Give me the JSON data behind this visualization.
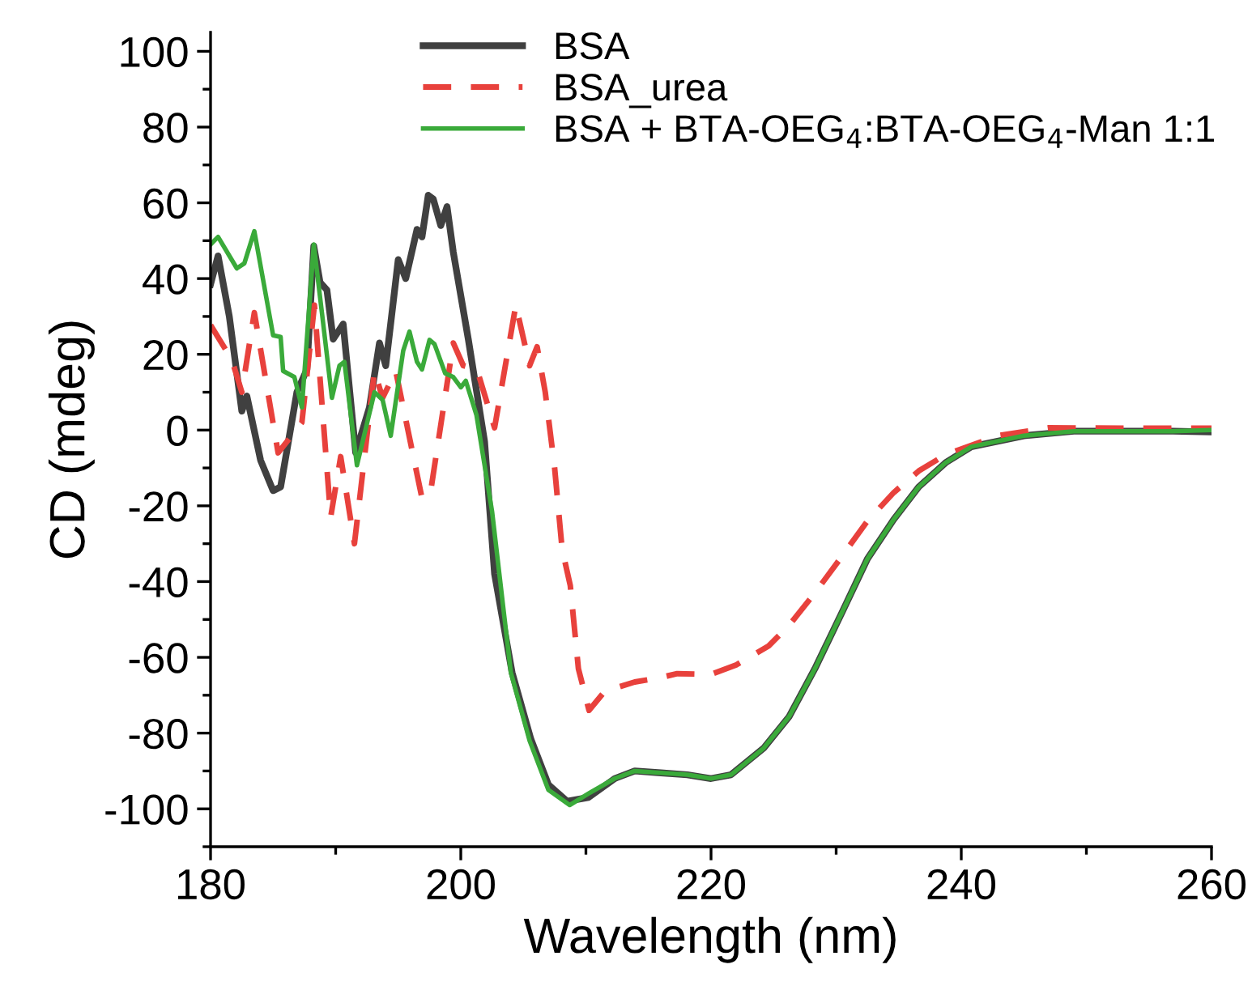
{
  "chart_data": {
    "type": "line",
    "xlabel": "Wavelength (nm)",
    "ylabel": "CD (mdeg)",
    "xlim": [
      180,
      260
    ],
    "xticks": [
      180,
      200,
      220,
      240,
      260
    ],
    "ylim": [
      -110,
      105
    ],
    "yticks": [
      -100,
      -80,
      -60,
      -40,
      -20,
      0,
      20,
      40,
      60,
      80,
      100
    ],
    "legend": "top right",
    "grid": false,
    "marker": "none",
    "series": [
      {
        "name": "BSA",
        "color": "#404040",
        "line_style": "solid",
        "x": [
          180,
          180.6,
          181.5,
          182.5,
          182.9,
          184,
          185,
          185.6,
          186.9,
          187.7,
          188.25,
          188.75,
          189.3,
          189.8,
          190.6,
          191.6,
          192.7,
          193.5,
          194,
          195,
          195.6,
          196.5,
          196.9,
          197.4,
          197.8,
          198.4,
          198.9,
          199.4,
          200.6,
          201.9,
          202.7,
          204.1,
          205.6,
          207,
          208.5,
          210.2,
          212.3,
          213.9,
          216,
          218.1,
          220,
          221.6,
          224.2,
          226.25,
          228.3,
          230.4,
          232.5,
          234.6,
          236.6,
          238.75,
          240.8,
          245,
          249,
          253,
          256.9,
          260
        ],
        "values": [
          38.5,
          46,
          30,
          5,
          9,
          -8,
          -16,
          -15,
          10,
          16,
          48.6,
          39,
          37,
          24,
          28,
          -6,
          6,
          23,
          17,
          45,
          40,
          53,
          51,
          62,
          61,
          54,
          59,
          47,
          24,
          -3,
          -38,
          -64,
          -81.6,
          -93.6,
          -98,
          -97,
          -92,
          -90,
          -90.5,
          -91,
          -92,
          -91,
          -84,
          -75.6,
          -63,
          -48.6,
          -34,
          -23.6,
          -15,
          -8.6,
          -4.4,
          -1.5,
          -0.3,
          -0.3,
          -0.3,
          -0.5
        ]
      },
      {
        "name": "BSA_urea",
        "color": "#e8413c",
        "line_style": "dashed",
        "x": [
          180,
          181.7,
          182.5,
          183.5,
          185.4,
          187.3,
          188.3,
          189.6,
          190.4,
          191.5,
          193.1,
          193.75,
          194.8,
          196.9,
          197.6,
          199.4,
          200.2,
          201.3,
          202.7,
          204.4,
          205.5,
          206.1,
          206.75,
          207.5,
          208.1,
          208.75,
          209.4,
          210.25,
          211.5,
          213.9,
          215.75,
          217.3,
          220,
          222,
          224.6,
          226.25,
          228.3,
          230.4,
          232.5,
          234.6,
          236.6,
          238.75,
          242.9,
          247,
          253,
          260
        ],
        "values": [
          27.7,
          18.6,
          10,
          31,
          -6,
          2,
          33,
          -23,
          -7,
          -30,
          15.6,
          8.5,
          15.6,
          -18,
          -16,
          23,
          17,
          16,
          0.6,
          33,
          17,
          22,
          10,
          -10,
          -31.5,
          -41,
          -63,
          -74,
          -69,
          -66.5,
          -65.5,
          -64.3,
          -64.5,
          -62,
          -57,
          -51.5,
          -43,
          -33.6,
          -24,
          -16.5,
          -10.8,
          -6.5,
          -1.5,
          0.6,
          0.5,
          0.5
        ]
      },
      {
        "name": "BSA + BTA-OEG$_{4}$:BTA-OEG$_{4}$-Man 1:1",
        "color": "#3aaa3a",
        "line_style": "solid",
        "x": [
          180,
          180.6,
          182.1,
          182.7,
          183.5,
          185,
          185.6,
          185.8,
          186.7,
          187.3,
          188.25,
          188.9,
          189.7,
          190.3,
          190.7,
          191.7,
          193.1,
          193.75,
          194.4,
          195.4,
          195.9,
          196.5,
          196.9,
          197.5,
          197.9,
          198.75,
          199.4,
          200,
          200.4,
          201.25,
          202.5,
          204,
          205.5,
          207,
          208.7,
          210.2,
          212.3,
          213.9,
          216,
          218.1,
          220,
          221.6,
          224.2,
          226.25,
          228.3,
          230.4,
          232.5,
          234.6,
          236.6,
          238.75,
          240.8,
          245,
          249,
          253,
          256.9,
          260
        ],
        "values": [
          49,
          51,
          42.7,
          44,
          52.5,
          25,
          24.6,
          15.6,
          14,
          6,
          49,
          31,
          8.5,
          17,
          18,
          -9.3,
          10,
          8,
          -1.5,
          21,
          26,
          18,
          16,
          23.8,
          22.7,
          15,
          14,
          11.3,
          13,
          4,
          -21.5,
          -64,
          -82,
          -95,
          -99,
          -96,
          -92,
          -90,
          -90.5,
          -91,
          -92,
          -91,
          -84,
          -75.6,
          -63,
          -48.6,
          -34,
          -23.6,
          -15,
          -8.6,
          -4.4,
          -1.5,
          -0.3,
          -0.3,
          -0.3,
          0
        ]
      }
    ]
  }
}
